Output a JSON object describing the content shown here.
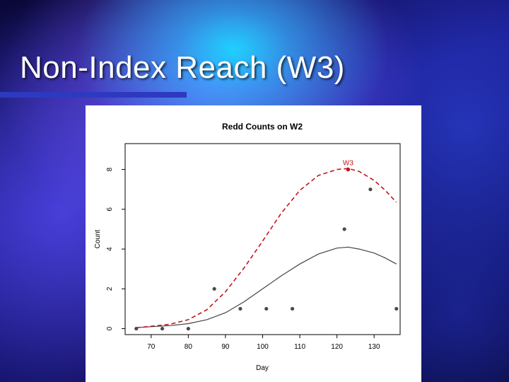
{
  "slide": {
    "title": "Non-Index Reach (W3)"
  },
  "chart_data": {
    "type": "scatter",
    "title": "Redd Counts on W2",
    "xlabel": "Day",
    "ylabel": "Count",
    "xlim": [
      63,
      137
    ],
    "ylim": [
      -0.3,
      9.3
    ],
    "x_ticks": [
      70,
      80,
      90,
      100,
      110,
      120,
      130
    ],
    "y_ticks": [
      0,
      2,
      4,
      6,
      8
    ],
    "grid": false,
    "points": {
      "name": "",
      "color": "#4a4a4a",
      "x": [
        66,
        73,
        80,
        87,
        94,
        101,
        108,
        122,
        129,
        136
      ],
      "y": [
        0,
        0,
        0,
        2,
        1,
        1,
        1,
        5,
        7,
        1
      ]
    },
    "highlight_point": {
      "label": "W3",
      "x": 123,
      "y": 8,
      "color": "#c0171d"
    },
    "series": [
      {
        "name": "",
        "style": "solid",
        "color": "#444444",
        "x": [
          66,
          70,
          75,
          80,
          85,
          90,
          95,
          100,
          105,
          110,
          115,
          120,
          123,
          126,
          130,
          133,
          136
        ],
        "y": [
          0.05,
          0.1,
          0.15,
          0.25,
          0.45,
          0.8,
          1.35,
          2.0,
          2.65,
          3.25,
          3.75,
          4.05,
          4.1,
          4.0,
          3.8,
          3.55,
          3.25
        ]
      },
      {
        "name": "",
        "style": "dashed",
        "color": "#c0171d",
        "x": [
          66,
          70,
          75,
          80,
          85,
          90,
          95,
          100,
          105,
          110,
          115,
          120,
          123,
          126,
          130,
          133,
          136
        ],
        "y": [
          0.05,
          0.12,
          0.22,
          0.45,
          0.95,
          1.85,
          3.05,
          4.4,
          5.8,
          6.95,
          7.7,
          8.0,
          8.05,
          7.9,
          7.45,
          6.95,
          6.35
        ]
      }
    ]
  }
}
